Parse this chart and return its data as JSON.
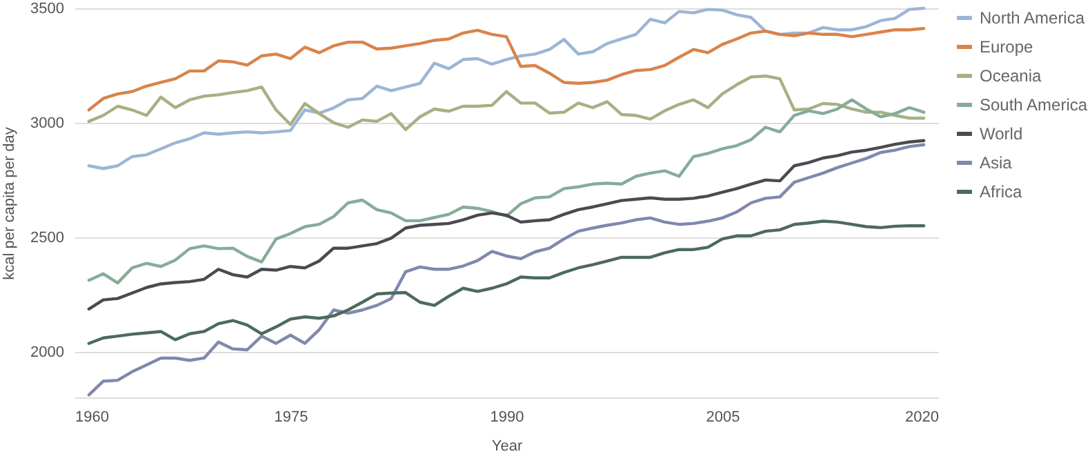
{
  "chart_data": {
    "type": "line",
    "xlabel": "Year",
    "ylabel": "kcal per capita per day",
    "x": [
      1961,
      1962,
      1963,
      1964,
      1965,
      1966,
      1967,
      1968,
      1969,
      1970,
      1971,
      1972,
      1973,
      1974,
      1975,
      1976,
      1977,
      1978,
      1979,
      1980,
      1981,
      1982,
      1983,
      1984,
      1985,
      1986,
      1987,
      1988,
      1989,
      1990,
      1991,
      1992,
      1993,
      1994,
      1995,
      1996,
      1997,
      1998,
      1999,
      2000,
      2001,
      2002,
      2003,
      2004,
      2005,
      2006,
      2007,
      2008,
      2009,
      2010,
      2011,
      2012,
      2013,
      2014,
      2015,
      2016,
      2017,
      2018,
      2019
    ],
    "series": [
      {
        "name": "North America",
        "color": "#9db5d6",
        "values": [
          2812,
          2800,
          2812,
          2852,
          2860,
          2886,
          2912,
          2930,
          2956,
          2950,
          2956,
          2960,
          2956,
          2960,
          2966,
          3056,
          3042,
          3065,
          3100,
          3106,
          3160,
          3140,
          3156,
          3172,
          3260,
          3236,
          3276,
          3280,
          3256,
          3276,
          3292,
          3300,
          3320,
          3364,
          3300,
          3310,
          3346,
          3366,
          3386,
          3452,
          3436,
          3486,
          3480,
          3495,
          3492,
          3472,
          3460,
          3400,
          3386,
          3392,
          3392,
          3416,
          3406,
          3406,
          3420,
          3446,
          3456,
          3495,
          3500
        ]
      },
      {
        "name": "Europe",
        "color": "#d9834a",
        "values": [
          3056,
          3106,
          3126,
          3136,
          3160,
          3176,
          3192,
          3226,
          3226,
          3270,
          3266,
          3252,
          3292,
          3300,
          3280,
          3330,
          3306,
          3336,
          3352,
          3352,
          3322,
          3326,
          3336,
          3346,
          3360,
          3366,
          3392,
          3404,
          3386,
          3376,
          3246,
          3250,
          3216,
          3176,
          3172,
          3176,
          3186,
          3210,
          3228,
          3232,
          3250,
          3286,
          3320,
          3306,
          3342,
          3366,
          3392,
          3400,
          3386,
          3380,
          3392,
          3386,
          3386,
          3376,
          3386,
          3396,
          3406,
          3406,
          3412
        ]
      },
      {
        "name": "Oceania",
        "color": "#a7b083",
        "values": [
          3006,
          3032,
          3072,
          3056,
          3032,
          3112,
          3066,
          3100,
          3116,
          3122,
          3132,
          3140,
          3156,
          3056,
          2992,
          3084,
          3040,
          3000,
          2980,
          3012,
          3006,
          3040,
          2970,
          3026,
          3060,
          3050,
          3072,
          3072,
          3076,
          3136,
          3086,
          3086,
          3042,
          3046,
          3086,
          3066,
          3092,
          3036,
          3032,
          3016,
          3052,
          3080,
          3100,
          3066,
          3126,
          3166,
          3200,
          3204,
          3192,
          3056,
          3060,
          3084,
          3080,
          3060,
          3046,
          3046,
          3032,
          3020,
          3020
        ]
      },
      {
        "name": "South America",
        "color": "#86ac98",
        "values": [
          2312,
          2340,
          2300,
          2366,
          2386,
          2372,
          2400,
          2450,
          2462,
          2450,
          2452,
          2416,
          2392,
          2492,
          2516,
          2546,
          2556,
          2590,
          2650,
          2662,
          2620,
          2606,
          2572,
          2572,
          2586,
          2600,
          2632,
          2626,
          2612,
          2592,
          2646,
          2672,
          2676,
          2712,
          2720,
          2732,
          2736,
          2732,
          2766,
          2780,
          2790,
          2766,
          2852,
          2866,
          2886,
          2900,
          2926,
          2980,
          2960,
          3032,
          3052,
          3040,
          3060,
          3100,
          3060,
          3026,
          3040,
          3066,
          3046
        ]
      },
      {
        "name": "World",
        "color": "#4a4a52",
        "values": [
          2186,
          2226,
          2232,
          2256,
          2280,
          2296,
          2302,
          2306,
          2316,
          2360,
          2336,
          2326,
          2360,
          2356,
          2372,
          2366,
          2396,
          2452,
          2452,
          2462,
          2472,
          2496,
          2540,
          2552,
          2556,
          2560,
          2576,
          2596,
          2606,
          2596,
          2566,
          2572,
          2576,
          2600,
          2620,
          2632,
          2646,
          2660,
          2666,
          2672,
          2666,
          2666,
          2670,
          2680,
          2696,
          2712,
          2732,
          2750,
          2746,
          2812,
          2826,
          2846,
          2856,
          2872,
          2880,
          2892,
          2906,
          2916,
          2922
        ]
      },
      {
        "name": "Asia",
        "color": "#8088ad",
        "values": [
          1811,
          1871,
          1875,
          1912,
          1942,
          1972,
          1972,
          1962,
          1972,
          2042,
          2012,
          2008,
          2068,
          2036,
          2072,
          2036,
          2096,
          2182,
          2168,
          2182,
          2202,
          2232,
          2349,
          2370,
          2360,
          2360,
          2374,
          2398,
          2438,
          2418,
          2406,
          2436,
          2452,
          2492,
          2526,
          2540,
          2552,
          2562,
          2576,
          2584,
          2566,
          2556,
          2560,
          2570,
          2584,
          2610,
          2650,
          2670,
          2676,
          2740,
          2760,
          2780,
          2804,
          2824,
          2844,
          2870,
          2880,
          2896,
          2904
        ]
      },
      {
        "name": "Africa",
        "color": "#4d6a5c",
        "values": [
          2036,
          2060,
          2068,
          2076,
          2082,
          2088,
          2052,
          2078,
          2088,
          2122,
          2136,
          2116,
          2078,
          2108,
          2142,
          2152,
          2146,
          2156,
          2182,
          2216,
          2252,
          2256,
          2258,
          2216,
          2202,
          2242,
          2277,
          2263,
          2277,
          2296,
          2326,
          2322,
          2322,
          2346,
          2366,
          2380,
          2396,
          2412,
          2412,
          2412,
          2432,
          2446,
          2446,
          2456,
          2492,
          2506,
          2506,
          2526,
          2532,
          2556,
          2562,
          2570,
          2566,
          2556,
          2546,
          2542,
          2548,
          2550,
          2550
        ]
      }
    ],
    "xlim": [
      1960,
      2020
    ],
    "xticks": [
      1960,
      1975,
      1990,
      2005,
      2020
    ],
    "ylim": [
      1800,
      3500
    ],
    "yticks": [
      2000,
      2500,
      3000,
      3500
    ],
    "grid": "y",
    "legend": "right"
  }
}
